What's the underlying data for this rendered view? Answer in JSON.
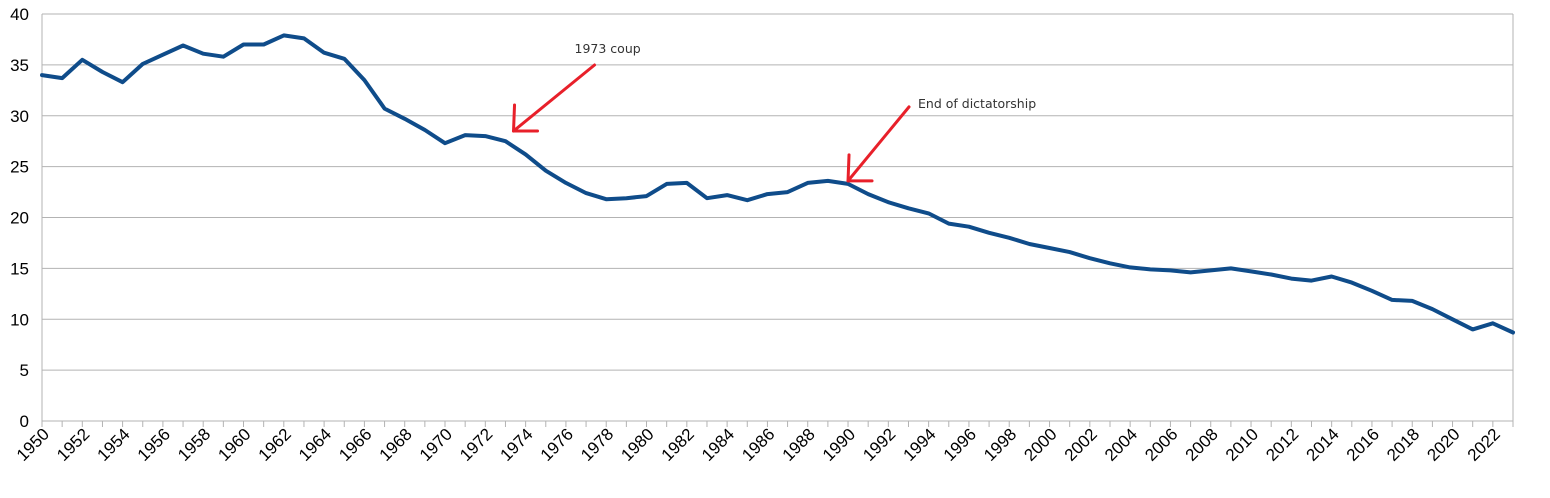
{
  "chart_data": {
    "type": "line",
    "title": "",
    "xlabel": "",
    "ylabel": "",
    "ylim": [
      0,
      40
    ],
    "y_ticks": [
      "0",
      "5",
      "10",
      "15",
      "20",
      "25",
      "30",
      "35",
      "40"
    ],
    "xlim": [
      1950,
      2023
    ],
    "x_tick_labels": [
      "1950",
      "1952",
      "1954",
      "1956",
      "1958",
      "1960",
      "1962",
      "1964",
      "1966",
      "1968",
      "1970",
      "1972",
      "1974",
      "1976",
      "1978",
      "1980",
      "1982",
      "1984",
      "1986",
      "1988",
      "1990",
      "1992",
      "1994",
      "1996",
      "1998",
      "2000",
      "2002",
      "2004",
      "2006",
      "2008",
      "2010",
      "2012",
      "2014",
      "2016",
      "2018",
      "2020",
      "2022"
    ],
    "grid": "horizontal",
    "legend": "none",
    "line_color": "#0f4c8a",
    "annotation_color": "#e8202a",
    "x": [
      1950,
      1951,
      1952,
      1953,
      1954,
      1955,
      1956,
      1957,
      1958,
      1959,
      1960,
      1961,
      1962,
      1963,
      1964,
      1965,
      1966,
      1967,
      1968,
      1969,
      1970,
      1971,
      1972,
      1973,
      1974,
      1975,
      1976,
      1977,
      1978,
      1979,
      1980,
      1981,
      1982,
      1983,
      1984,
      1985,
      1986,
      1987,
      1988,
      1989,
      1990,
      1991,
      1992,
      1993,
      1994,
      1995,
      1996,
      1997,
      1998,
      1999,
      2000,
      2001,
      2002,
      2003,
      2004,
      2005,
      2006,
      2007,
      2008,
      2009,
      2010,
      2011,
      2012,
      2013,
      2014,
      2015,
      2016,
      2017,
      2018,
      2019,
      2020,
      2021,
      2022,
      2023
    ],
    "series": [
      {
        "values": [
          34.0,
          33.7,
          35.5,
          34.3,
          33.3,
          35.1,
          36.0,
          36.9,
          36.1,
          35.8,
          37.0,
          37.0,
          37.9,
          37.6,
          36.2,
          35.6,
          33.5,
          30.7,
          29.7,
          28.6,
          27.3,
          28.1,
          28.0,
          27.5,
          26.2,
          24.6,
          23.4,
          22.4,
          21.8,
          21.9,
          22.1,
          23.3,
          23.4,
          21.9,
          22.2,
          21.7,
          22.3,
          22.5,
          23.4,
          23.6,
          23.3,
          22.3,
          21.5,
          20.9,
          20.4,
          19.4,
          19.1,
          18.5,
          18.0,
          17.4,
          17.0,
          16.6,
          16.0,
          15.5,
          15.1,
          14.9,
          14.8,
          14.6,
          14.8,
          15.0,
          14.7,
          14.4,
          14.0,
          13.8,
          14.2,
          13.6,
          12.8,
          11.9,
          11.8,
          11.0,
          10.0,
          9.0,
          9.6,
          8.7
        ]
      }
    ],
    "annotations": [
      {
        "text": "1973 coup",
        "target_x": 1973.4,
        "target_y": 28.5
      },
      {
        "text": "End of dictatorship",
        "target_x": 1990.0,
        "target_y": 23.6
      }
    ]
  }
}
